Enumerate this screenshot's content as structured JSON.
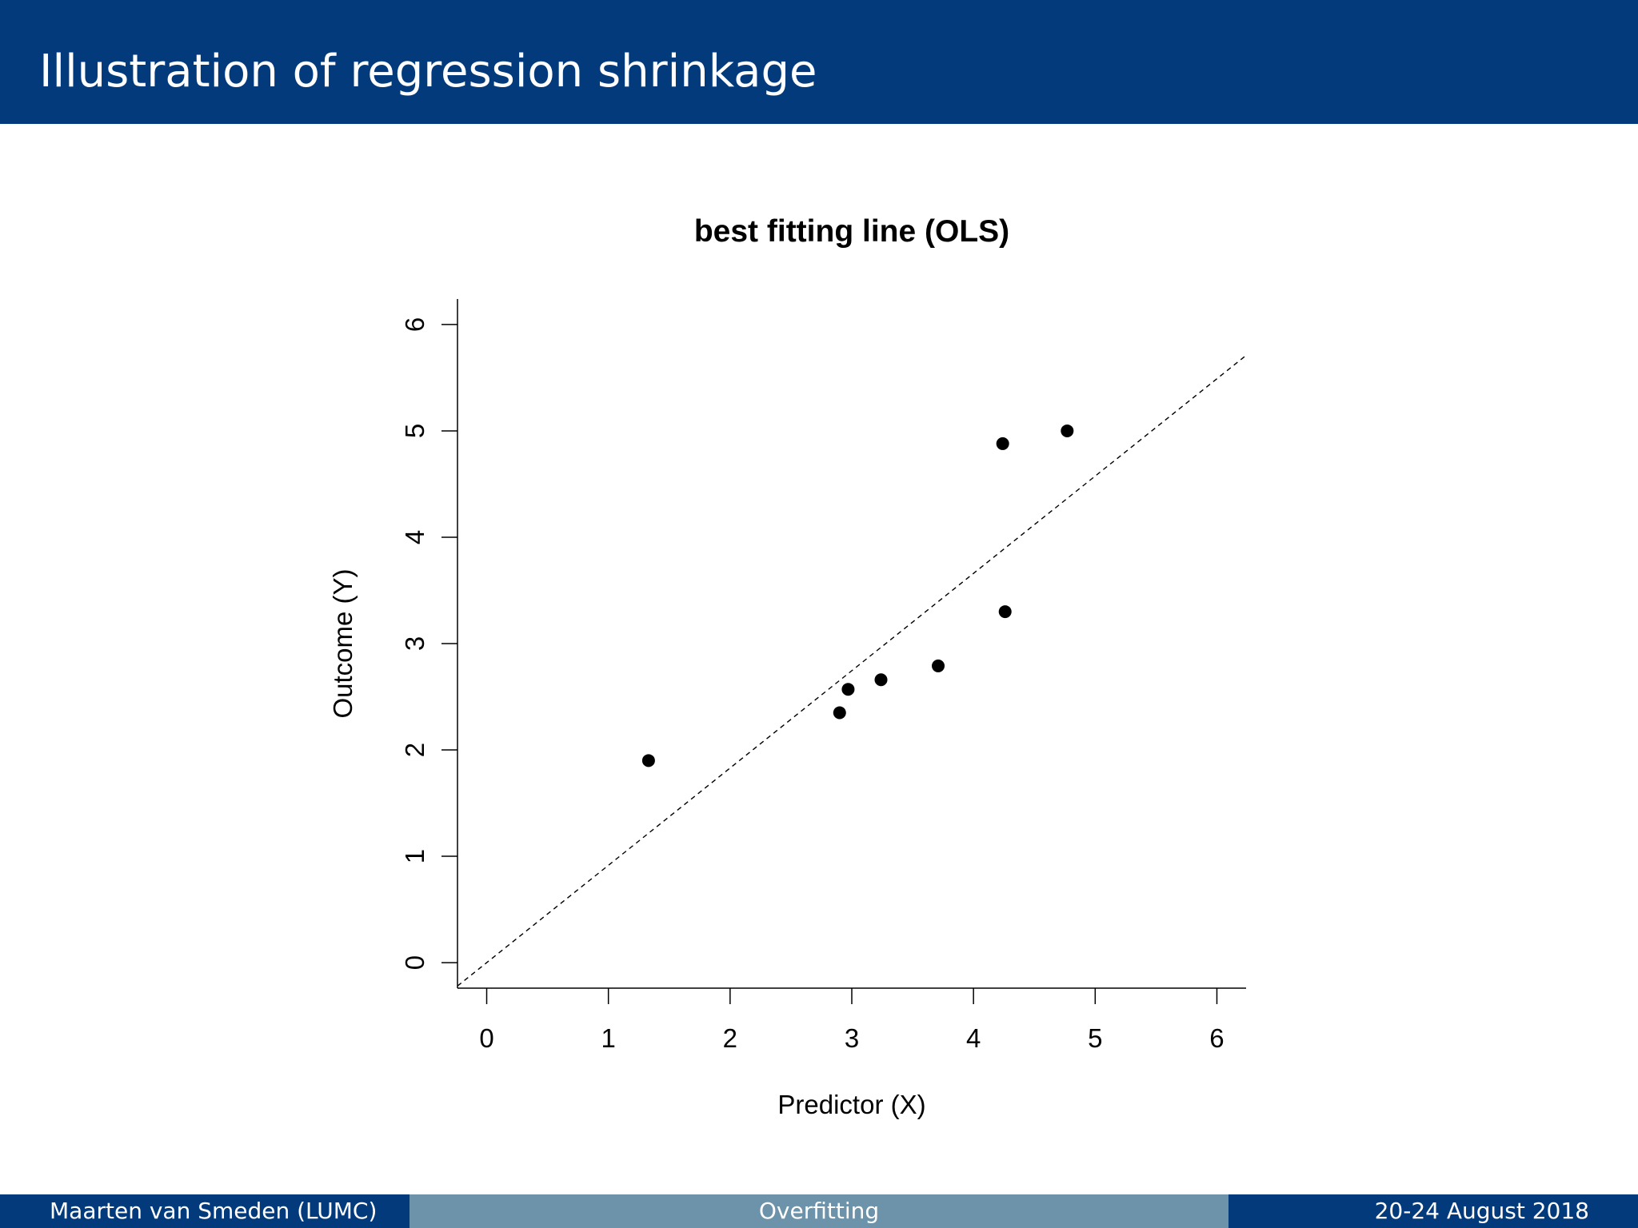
{
  "slide": {
    "title": "Illustration of regression shrinkage"
  },
  "footer": {
    "author": "Maarten van Smeden  (LUMC)",
    "topic": "Overfitting",
    "date": "20-24 August 2018"
  },
  "colors": {
    "header_bg": "#023a7b",
    "footer_mid_bg": "#6c93aa"
  },
  "chart_data": {
    "type": "scatter",
    "title": "best fitting line (OLS)",
    "xlabel": "Predictor (X)",
    "ylabel": "Outcome (Y)",
    "xlim": [
      -0.24,
      6.24
    ],
    "ylim": [
      -0.24,
      6.24
    ],
    "xticks": [
      "0",
      "1",
      "2",
      "3",
      "4",
      "5",
      "6"
    ],
    "yticks": [
      "0",
      "1",
      "2",
      "3",
      "4",
      "5",
      "6"
    ],
    "grid": false,
    "points": [
      {
        "x": 1.33,
        "y": 1.9
      },
      {
        "x": 2.9,
        "y": 2.35
      },
      {
        "x": 2.97,
        "y": 2.57
      },
      {
        "x": 3.24,
        "y": 2.66
      },
      {
        "x": 3.71,
        "y": 2.79
      },
      {
        "x": 4.24,
        "y": 4.88
      },
      {
        "x": 4.26,
        "y": 3.3
      },
      {
        "x": 4.77,
        "y": 5.0
      }
    ],
    "fit_line": {
      "style": "dashed",
      "intercept": 0.0,
      "slope": 0.915
    }
  }
}
